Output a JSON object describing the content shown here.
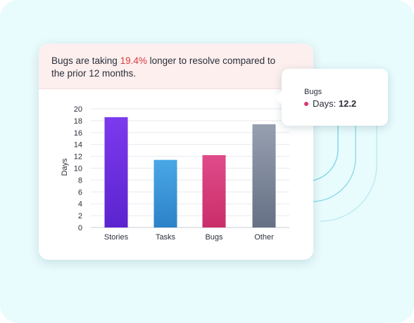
{
  "insight": {
    "prefix": "Bugs are taking ",
    "highlight": "19.4%",
    "suffix": " longer to resolve compared to the prior 12 months."
  },
  "tooltip": {
    "title": "Bugs",
    "series": "Days:",
    "value": "12.2",
    "dot_color": "#d9376e"
  },
  "colors": {
    "highlight": "#d93b3b",
    "background": "#e8fbfd",
    "banner": "#fcefee",
    "decor_lines": "#7fd6e4"
  },
  "chart_data": {
    "type": "bar",
    "categories": [
      "Stories",
      "Tasks",
      "Bugs",
      "Other"
    ],
    "series": [
      {
        "values": [
          18.6,
          11.4,
          12.2,
          17.4
        ]
      }
    ],
    "bar_gradients": [
      [
        "#7c3aed",
        "#5b24cf"
      ],
      [
        "#4aa7e6",
        "#2c82c8"
      ],
      [
        "#e04b8a",
        "#c92e69"
      ],
      [
        "#96a0b0",
        "#667085"
      ]
    ],
    "ylabel": "Days",
    "ylim": [
      0,
      20
    ],
    "yticks": [
      0,
      2,
      4,
      6,
      8,
      10,
      12,
      14,
      16,
      18,
      20
    ],
    "grid": true
  }
}
